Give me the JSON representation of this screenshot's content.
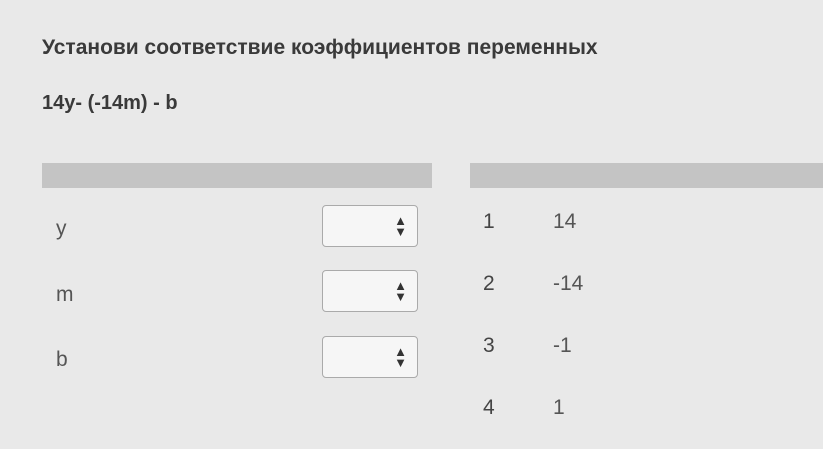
{
  "question": "Установи соответствие коэффициентов переменных",
  "expression": "14y- (-14m) - b",
  "rows": [
    {
      "label": "y"
    },
    {
      "label": "m"
    },
    {
      "label": "b"
    }
  ],
  "options": [
    {
      "num": "1",
      "value": "14"
    },
    {
      "num": "2",
      "value": "-14"
    },
    {
      "num": "3",
      "value": "-1"
    },
    {
      "num": "4",
      "value": "1"
    }
  ]
}
